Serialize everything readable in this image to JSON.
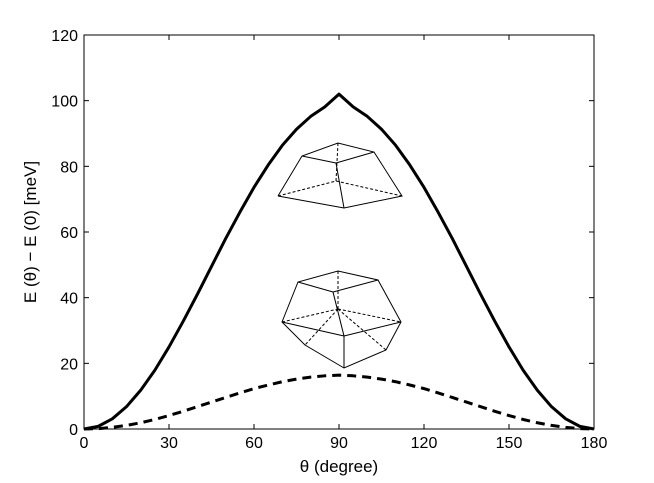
{
  "chart_data": {
    "type": "line",
    "xlabel": "θ (degree)",
    "ylabel": "E (θ) − E (0) [meV]",
    "xlim": [
      0,
      180
    ],
    "ylim": [
      0,
      120
    ],
    "xticks": [
      0,
      30,
      60,
      90,
      120,
      150,
      180
    ],
    "yticks": [
      0,
      20,
      40,
      60,
      80,
      100,
      120
    ],
    "grid": false,
    "legend": "none",
    "series": [
      {
        "style": "solid",
        "x": [
          0,
          5,
          10,
          15,
          20,
          25,
          30,
          35,
          40,
          45,
          50,
          55,
          60,
          65,
          70,
          75,
          80,
          85,
          90,
          95,
          100,
          105,
          110,
          115,
          120,
          125,
          130,
          135,
          140,
          145,
          150,
          155,
          160,
          165,
          170,
          175,
          180
        ],
        "y": [
          0,
          0.8,
          3.1,
          6.8,
          11.8,
          17.9,
          25.0,
          32.8,
          41.0,
          49.5,
          58.0,
          66.0,
          73.6,
          80.4,
          86.4,
          91.3,
          95.2,
          98.1,
          102.0,
          98.1,
          95.2,
          91.3,
          86.4,
          80.4,
          73.6,
          66.0,
          58.0,
          49.5,
          41.0,
          32.8,
          25.0,
          17.9,
          11.8,
          6.8,
          3.1,
          0.8,
          0
        ]
      },
      {
        "style": "dashed",
        "x": [
          0,
          5,
          10,
          15,
          20,
          25,
          30,
          35,
          40,
          45,
          50,
          55,
          60,
          65,
          70,
          75,
          80,
          85,
          90,
          95,
          100,
          105,
          110,
          115,
          120,
          125,
          130,
          135,
          140,
          145,
          150,
          155,
          160,
          165,
          170,
          175,
          180
        ],
        "y": [
          0,
          0.1,
          0.5,
          1.1,
          1.9,
          2.9,
          4.1,
          5.4,
          6.8,
          8.2,
          9.6,
          11.0,
          12.3,
          13.4,
          14.4,
          15.2,
          15.8,
          16.2,
          16.4,
          16.2,
          15.8,
          15.2,
          14.4,
          13.4,
          12.3,
          11.0,
          9.6,
          8.2,
          6.8,
          5.4,
          4.1,
          2.9,
          1.9,
          1.1,
          0.5,
          0.1,
          0
        ]
      }
    ]
  }
}
